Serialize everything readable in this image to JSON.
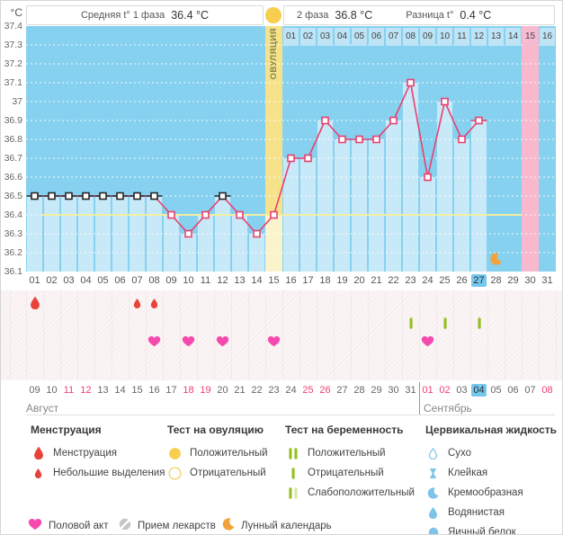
{
  "header": {
    "phase1_label": "Средняя t° 1 фаза",
    "phase1_value": "36.4 °C",
    "phase2_label": "2 фаза",
    "phase2_value": "36.8 °C",
    "diff_label": "Разница t°",
    "diff_value": "0.4 °C"
  },
  "chart_data": {
    "type": "line",
    "unit_label": "°C",
    "ylim": [
      36.1,
      37.4
    ],
    "y_ticks": [
      "37.4",
      "37.3",
      "37.2",
      "37.1",
      "37",
      "36.9",
      "36.8",
      "36.7",
      "36.6",
      "36.5",
      "36.4",
      "36.3",
      "36.2",
      "36.1"
    ],
    "x_days": [
      "01",
      "02",
      "03",
      "04",
      "05",
      "06",
      "07",
      "08",
      "09",
      "10",
      "11",
      "12",
      "13",
      "14",
      "15",
      "16",
      "17",
      "18",
      "19",
      "20",
      "21",
      "22",
      "23",
      "24",
      "25",
      "26",
      "27",
      "28",
      "29",
      "30",
      "31"
    ],
    "temperatures": [
      36.5,
      36.5,
      36.5,
      36.5,
      36.5,
      36.5,
      36.5,
      36.5,
      36.4,
      36.3,
      36.4,
      36.5,
      36.4,
      36.3,
      36.4,
      36.7,
      36.7,
      36.9,
      36.8,
      36.8,
      36.8,
      36.9,
      37.1,
      36.6,
      37.0,
      36.8,
      36.9,
      null,
      null,
      null,
      null
    ],
    "excluded_days": [
      1,
      2,
      3,
      4,
      5,
      6,
      7,
      8,
      12
    ],
    "dashed_days": [
      27
    ],
    "coverline": 36.4,
    "ovulation": {
      "day": 15,
      "label": "ОВУЛЯЦИЯ"
    },
    "expected_period_day": 30,
    "dpo": {
      "start_day": 16,
      "labels": [
        "01",
        "02",
        "03",
        "04",
        "05",
        "06",
        "07",
        "08",
        "09",
        "10",
        "11",
        "12",
        "13",
        "14",
        "15",
        "16"
      ],
      "highlight_label": "15"
    },
    "today_day": 27,
    "moon_day": 28,
    "events": {
      "menstruation_days": [
        1
      ],
      "spotting_days": [
        7,
        8
      ],
      "pregnancy_test_negative_days": [
        23,
        25,
        27
      ],
      "intercourse_days": [
        8,
        10,
        12,
        15,
        24
      ]
    }
  },
  "calendar": {
    "dates": [
      "09",
      "10",
      "11",
      "12",
      "13",
      "14",
      "15",
      "16",
      "17",
      "18",
      "19",
      "20",
      "21",
      "22",
      "23",
      "24",
      "25",
      "26",
      "27",
      "28",
      "29",
      "30",
      "31",
      "01",
      "02",
      "03",
      "04",
      "05",
      "06",
      "07",
      "08"
    ],
    "weekend_indices": [
      2,
      3,
      9,
      10,
      16,
      17,
      23,
      24,
      30
    ],
    "today_index": 26,
    "months": [
      {
        "label": "Август",
        "start_index": 0
      },
      {
        "label": "Сентябрь",
        "start_index": 23
      }
    ]
  },
  "legend": {
    "groups": [
      {
        "title": "Менструация",
        "items": [
          {
            "icon": "menstruation-drop-icon",
            "label": "Менструация"
          },
          {
            "icon": "spotting-drop-icon",
            "label": "Небольшие выделения"
          }
        ]
      },
      {
        "title": "Тест на овуляцию",
        "items": [
          {
            "icon": "ovulation-test-positive-icon",
            "label": "Положительный"
          },
          {
            "icon": "ovulation-test-negative-icon",
            "label": "Отрицательный"
          }
        ]
      },
      {
        "title": "Тест на беременность",
        "items": [
          {
            "icon": "pregnancy-test-positive-icon",
            "label": "Положительный"
          },
          {
            "icon": "pregnancy-test-negative-icon",
            "label": "Отрицательный"
          },
          {
            "icon": "pregnancy-test-weak-icon",
            "label": "Слабоположительный"
          }
        ]
      },
      {
        "title": "Цервикальная жидкость",
        "items": [
          {
            "icon": "fluid-dry-icon",
            "label": "Сухо"
          },
          {
            "icon": "fluid-sticky-icon",
            "label": "Клейкая"
          },
          {
            "icon": "fluid-creamy-icon",
            "label": "Кремообразная"
          },
          {
            "icon": "fluid-watery-icon",
            "label": "Водянистая"
          },
          {
            "icon": "fluid-eggwhite-icon",
            "label": "Яичный белок"
          }
        ]
      }
    ],
    "extra_items": [
      {
        "icon": "intercourse-heart-icon",
        "label": "Половой акт"
      },
      {
        "icon": "medication-icon",
        "label": "Прием лекарств"
      },
      {
        "icon": "moon-icon",
        "label": "Лунный календарь"
      }
    ]
  },
  "colors": {
    "chart_bg": "#86D1F0",
    "fill_blue": "#C8E9F8",
    "band_yellow": "#F6E28B",
    "band_yellow_pale": "#FBF3CB",
    "band_pink": "#F8B9CE",
    "dpo_cell": "#BEE4F6",
    "dpo_cell_pink": "#F6BBD2",
    "line": "#E8406F",
    "excluded_marker": "#262626",
    "coverline": "#F2EFA0",
    "grid": "#FFFFFF",
    "today_bg": "#74C8EF",
    "weekend_text": "#EE3F6E",
    "drop_red": "#E8423B",
    "heart_pink": "#F649AE",
    "test_green": "#93C01F",
    "test_green_pale": "#D7E6A5",
    "moon_orange": "#F2A33C",
    "fluid_blue": "#7FC4E8",
    "ovulation_yellow": "#F7CE4E"
  }
}
